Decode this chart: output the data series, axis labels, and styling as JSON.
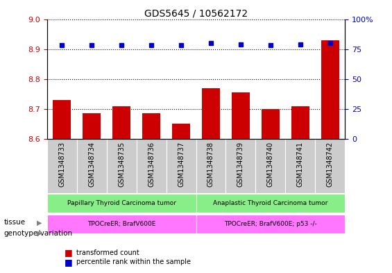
{
  "title": "GDS5645 / 10562172",
  "samples": [
    "GSM1348733",
    "GSM1348734",
    "GSM1348735",
    "GSM1348736",
    "GSM1348737",
    "GSM1348738",
    "GSM1348739",
    "GSM1348740",
    "GSM1348741",
    "GSM1348742"
  ],
  "bar_values": [
    8.73,
    8.685,
    8.71,
    8.685,
    8.65,
    8.77,
    8.755,
    8.7,
    8.71,
    8.93
  ],
  "dot_values": [
    78,
    78,
    78,
    78,
    78,
    80,
    79,
    78,
    79,
    80
  ],
  "ylim_left": [
    8.6,
    9.0
  ],
  "ylim_right": [
    0,
    100
  ],
  "yticks_left": [
    8.6,
    8.7,
    8.8,
    8.9,
    9.0
  ],
  "yticks_right": [
    0,
    25,
    50,
    75,
    100
  ],
  "bar_color": "#cc0000",
  "dot_color": "#0000cc",
  "tissue_groups": [
    {
      "label": "Papillary Thyroid Carcinoma tumor",
      "start": 0,
      "end": 5,
      "color": "#88ee88"
    },
    {
      "label": "Anaplastic Thyroid Carcinoma tumor",
      "start": 5,
      "end": 10,
      "color": "#88ee88"
    }
  ],
  "genotype_groups": [
    {
      "label": "TPOCreER; BrafV600E",
      "start": 0,
      "end": 5,
      "color": "#ff77ff"
    },
    {
      "label": "TPOCreER; BrafV600E; p53 -/-",
      "start": 5,
      "end": 10,
      "color": "#ff77ff"
    }
  ],
  "tissue_label": "tissue",
  "genotype_label": "genotype/variation",
  "legend_bar_label": "transformed count",
  "legend_dot_label": "percentile rank within the sample",
  "left_color": "#cc0000",
  "right_color": "#0000cc",
  "tick_label_bg": "#cccccc",
  "tick_label_fontsize": 7,
  "bar_width": 0.6,
  "figsize": [
    5.65,
    3.93
  ],
  "dpi": 100
}
